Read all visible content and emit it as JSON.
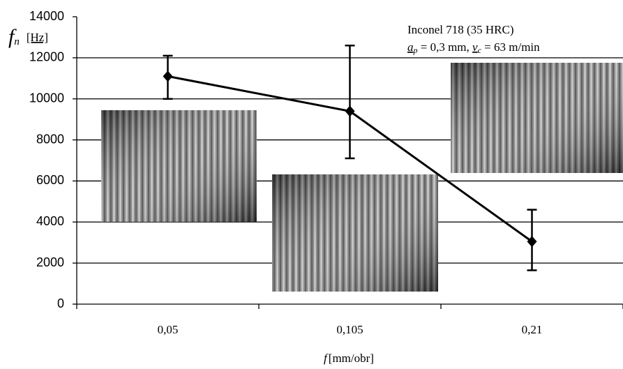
{
  "chart_data": {
    "type": "line",
    "y_label": {
      "symbol": "f",
      "sub": "n",
      "unit": "[Hz]"
    },
    "x_label": {
      "symbol": "f",
      "unit": "[mm/obr]"
    },
    "annotation": {
      "line1": "Inconel 718 (35 HRC)",
      "line2": [
        "a",
        "p",
        " = 0,3 mm, ",
        "v",
        "c",
        " = 63 m/min"
      ]
    },
    "categories": [
      "0,05",
      "0,105",
      "0,21"
    ],
    "values": [
      11100,
      9400,
      3050
    ],
    "err_plus": [
      1000,
      3200,
      1550
    ],
    "err_minus": [
      1100,
      2300,
      1400
    ],
    "color": "#000000",
    "ylim": [
      0,
      14000
    ],
    "yticks": [
      0,
      2000,
      4000,
      6000,
      8000,
      10000,
      12000,
      14000
    ],
    "grid": true
  }
}
